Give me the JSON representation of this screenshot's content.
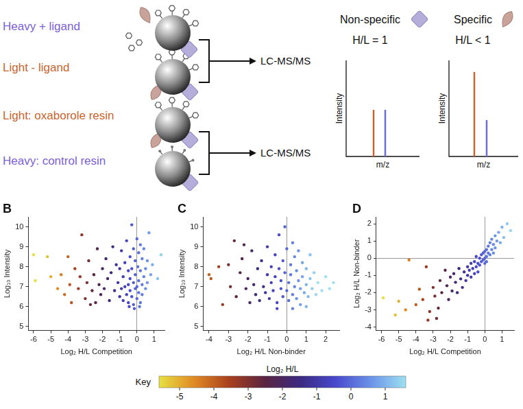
{
  "diagram": {
    "samples": [
      "Heavy + ligand",
      "Light - ligand",
      "Light: oxaborole resin",
      "Heavy: control resin"
    ],
    "outputs": [
      "LC-MS/MS",
      "LC-MS/MS"
    ],
    "classes": [
      {
        "name": "Non-specific",
        "ratio": "H/L = 1",
        "x_label": "m/z",
        "y_label": "Intensity"
      },
      {
        "name": "Specific",
        "ratio": "H/L < 1",
        "x_label": "m/z",
        "y_label": "Intensity"
      }
    ]
  },
  "chart_data": [
    {
      "type": "scatter",
      "panel": "B",
      "x_label": "Log₂ H/L Competition",
      "y_label": "Log₁₀ Intensity",
      "xlim": [
        -6.3,
        1.6
      ],
      "xticks": [
        -6,
        -5,
        -4,
        -3,
        -2,
        -1,
        0,
        1
      ],
      "ylim": [
        4.8,
        10.5
      ],
      "yticks": [
        5,
        6,
        7,
        8,
        9,
        10
      ],
      "x": [
        -6.0,
        -5.9,
        -5.2,
        -5.0,
        -4.6,
        -4.4,
        -4.2,
        -4.0,
        -3.9,
        -3.8,
        -3.6,
        -3.4,
        -3.3,
        -3.2,
        -3.0,
        -2.9,
        -2.8,
        -2.7,
        -2.6,
        -2.5,
        -2.4,
        -2.3,
        -2.2,
        -2.1,
        -2.0,
        -1.9,
        -1.8,
        -1.7,
        -1.6,
        -1.5,
        -1.4,
        -1.3,
        -1.2,
        -1.1,
        -1.0,
        -1.0,
        -0.9,
        -0.9,
        -0.8,
        -0.8,
        -0.7,
        -0.7,
        -0.6,
        -0.6,
        -0.5,
        -0.5,
        -0.5,
        -0.45,
        -0.4,
        -0.4,
        -0.4,
        -0.3,
        -0.3,
        -0.3,
        -0.2,
        -0.2,
        -0.2,
        -0.15,
        -0.1,
        -0.1,
        -0.1,
        0.0,
        0.0,
        0.0,
        0.05,
        0.1,
        0.1,
        0.1,
        0.15,
        0.2,
        0.2,
        0.2,
        0.3,
        0.3,
        0.3,
        0.4,
        0.4,
        0.5,
        0.5,
        0.6,
        0.6,
        0.7,
        0.8,
        0.9,
        1.2,
        1.4
      ],
      "values": [
        8.6,
        7.3,
        8.5,
        7.5,
        6.9,
        7.6,
        6.6,
        8.5,
        7.1,
        6.2,
        7.9,
        6.9,
        7.5,
        9.6,
        6.4,
        7.2,
        8.3,
        6.1,
        6.8,
        7.6,
        6.2,
        8.9,
        7.1,
        6.6,
        7.9,
        6.9,
        8.4,
        7.4,
        6.3,
        7.7,
        9.0,
        6.8,
        8.1,
        7.2,
        6.5,
        7.9,
        8.8,
        6.9,
        7.5,
        6.3,
        8.2,
        7.0,
        9.3,
        6.6,
        7.8,
        7.1,
        6.2,
        6.0,
        8.5,
        6.8,
        7.4,
        10.1,
        6.5,
        7.9,
        8.9,
        7.2,
        6.1,
        5.9,
        8.3,
        6.9,
        7.6,
        9.4,
        7.0,
        6.4,
        8.0,
        7.3,
        6.7,
        8.7,
        6.0,
        7.8,
        6.2,
        9.1,
        7.1,
        8.4,
        6.6,
        7.5,
        8.9,
        6.9,
        7.9,
        8.3,
        7.2,
        9.7,
        7.6,
        8.1,
        7.4,
        8.6
      ]
    },
    {
      "type": "scatter",
      "panel": "C",
      "x_label": "Log₂ H/L Non-binder",
      "y_label": "Log₁₀ Intensity",
      "xlim": [
        -4.3,
        2.7
      ],
      "xticks": [
        -4,
        -3,
        -2,
        -1,
        0,
        1,
        2
      ],
      "ylim": [
        4.8,
        10.5
      ],
      "yticks": [
        5,
        6,
        7,
        8,
        9,
        10
      ],
      "x": [
        -4.0,
        -3.9,
        -3.5,
        -3.3,
        -3.0,
        -2.9,
        -2.7,
        -2.6,
        -2.4,
        -2.3,
        -2.2,
        -2.1,
        -2.0,
        -1.9,
        -1.8,
        -1.7,
        -1.6,
        -1.5,
        -1.4,
        -1.3,
        -1.2,
        -1.1,
        -1.0,
        -1.0,
        -0.9,
        -0.8,
        -0.8,
        -0.7,
        -0.6,
        -0.6,
        -0.5,
        -0.5,
        -0.4,
        -0.4,
        -0.3,
        -0.3,
        -0.2,
        -0.2,
        -0.1,
        -0.1,
        0.0,
        0.0,
        0.1,
        0.1,
        0.2,
        0.2,
        0.3,
        0.3,
        0.3,
        0.4,
        0.4,
        0.5,
        0.5,
        0.6,
        0.6,
        0.7,
        0.7,
        0.8,
        0.8,
        0.9,
        1.0,
        1.0,
        1.0,
        1.1,
        1.2,
        1.2,
        1.3,
        1.4,
        1.5,
        1.6,
        1.8,
        2.0,
        2.2,
        2.4
      ],
      "values": [
        7.6,
        7.4,
        8.0,
        6.1,
        8.1,
        7.0,
        9.3,
        6.5,
        7.7,
        8.4,
        9.1,
        6.9,
        7.4,
        6.2,
        8.8,
        7.1,
        6.6,
        7.9,
        6.3,
        8.3,
        7.0,
        6.7,
        7.6,
        9.0,
        6.4,
        8.0,
        7.2,
        6.8,
        8.6,
        7.5,
        6.2,
        5.9,
        7.9,
        9.6,
        6.9,
        7.3,
        8.3,
        6.5,
        7.7,
        10.0,
        6.8,
        8.9,
        7.2,
        6.3,
        8.1,
        7.6,
        6.6,
        9.2,
        5.9,
        7.0,
        8.5,
        6.4,
        7.8,
        7.3,
        8.8,
        6.9,
        6.1,
        7.5,
        8.2,
        6.7,
        7.1,
        7.9,
        6.0,
        6.5,
        7.4,
        8.6,
        6.9,
        7.7,
        6.6,
        7.2,
        6.8,
        7.5,
        6.9,
        7.2
      ]
    },
    {
      "type": "scatter",
      "panel": "D",
      "x_label": "Log₂ H/L Competition",
      "y_label": "Log₂ H/L Non-binder",
      "xlim": [
        -6.3,
        1.7
      ],
      "xticks": [
        -6,
        -5,
        -4,
        -3,
        -2,
        -1,
        0,
        1
      ],
      "ylim": [
        -4.2,
        2.4
      ],
      "yticks": [
        -4,
        -3,
        -2,
        -1,
        0,
        1,
        2
      ],
      "x": [
        -5.9,
        -5.2,
        -5.0,
        -4.6,
        -4.4,
        -4.0,
        -3.8,
        -3.6,
        -3.4,
        -3.3,
        -3.2,
        -3.0,
        -2.9,
        -2.8,
        -2.7,
        -2.6,
        -2.5,
        -2.3,
        -2.2,
        -2.1,
        -2.0,
        -1.9,
        -1.8,
        -1.7,
        -1.6,
        -1.5,
        -1.4,
        -1.3,
        -1.2,
        -1.1,
        -1.0,
        -1.0,
        -0.9,
        -0.8,
        -0.8,
        -0.7,
        -0.6,
        -0.6,
        -0.5,
        -0.5,
        -0.4,
        -0.4,
        -0.3,
        -0.3,
        -0.2,
        -0.2,
        -0.1,
        -0.1,
        0.0,
        0.0,
        0.0,
        0.1,
        0.1,
        0.1,
        0.2,
        0.2,
        0.3,
        0.3,
        0.4,
        0.4,
        0.5,
        0.5,
        0.6,
        0.6,
        0.7,
        0.8,
        0.9,
        1.0,
        1.1,
        1.3,
        1.5
      ],
      "values": [
        -2.3,
        -3.3,
        -2.5,
        -3.0,
        -0.1,
        -2.7,
        -1.8,
        -2.4,
        -0.5,
        -3.6,
        -3.1,
        -1.7,
        -2.2,
        -3.5,
        -2.9,
        -1.3,
        -2.0,
        -0.7,
        -1.6,
        -2.4,
        -1.1,
        -1.9,
        -0.9,
        -1.4,
        -2.0,
        -0.6,
        -1.2,
        -1.7,
        -0.8,
        -1.3,
        -0.5,
        -1.0,
        -0.7,
        -1.1,
        -0.3,
        -0.6,
        -0.9,
        -0.2,
        -0.5,
        0.1,
        -0.3,
        -0.8,
        0.0,
        -0.4,
        0.2,
        -0.2,
        -0.1,
        0.3,
        0.0,
        -0.3,
        0.4,
        0.1,
        0.5,
        -0.2,
        0.3,
        0.7,
        0.2,
        0.9,
        0.5,
        1.1,
        0.3,
        0.8,
        1.3,
        0.6,
        1.0,
        1.5,
        0.9,
        1.8,
        1.2,
        2.0,
        1.6
      ]
    }
  ],
  "color_key": {
    "label": "Key",
    "title": "Log₂ H/L",
    "range": [
      -5.6,
      1.6
    ],
    "ticks": [
      -5,
      -4,
      -3,
      -2,
      -1,
      0,
      1
    ],
    "colors": [
      "#e6e044",
      "#e08a24",
      "#a8401e",
      "#5a2440",
      "#3c2a80",
      "#4848cc",
      "#6a92e8",
      "#9ee0f0"
    ]
  }
}
